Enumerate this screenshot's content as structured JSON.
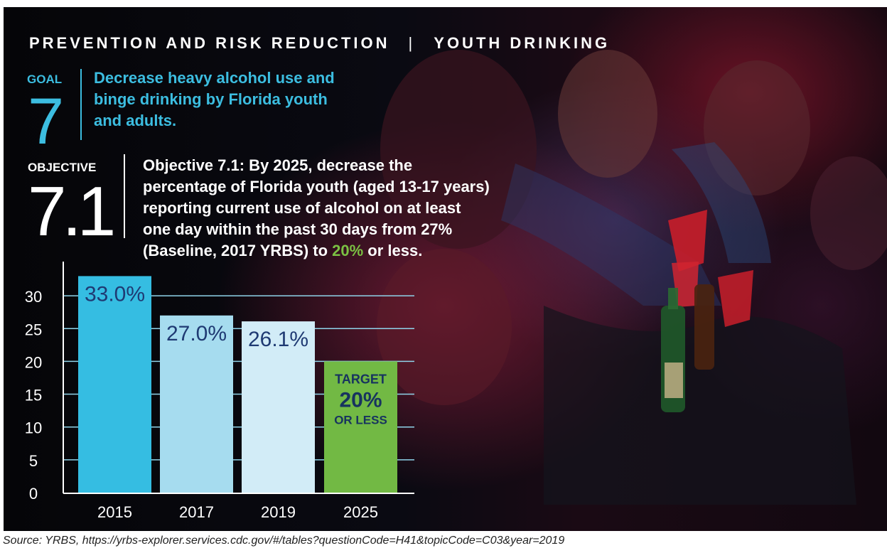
{
  "header": {
    "section": "PREVENTION AND RISK REDUCTION",
    "separator": "|",
    "topic": "YOUTH DRINKING"
  },
  "goal": {
    "label": "GOAL",
    "number": "7",
    "text_line1": "Decrease heavy alcohol use and",
    "text_line2": "binge drinking by Florida youth",
    "text_line3": "and adults."
  },
  "objective": {
    "label": "OBJECTIVE",
    "number": "7.1",
    "line1": "Objective 7.1: By 2025, decrease the",
    "line2": "percentage of Florida youth (aged 13-17 years)",
    "line3": "reporting current use of alcohol on at least",
    "line4": "one day within the past 30 days from 27%",
    "line5_before": "(Baseline, 2017 YRBS) to ",
    "line5_highlight": "20%",
    "line5_after": " or less."
  },
  "colors": {
    "accent_blue": "#3cbde0",
    "highlight_green": "#7bc143",
    "bar_2015": "#35bde2",
    "bar_2017": "#a6dcef",
    "bar_2019": "#d2ecf7",
    "bar_2025": "#72b944",
    "label_navy": "#1f3a73",
    "target_text": "#17335f"
  },
  "chart_data": {
    "type": "bar",
    "categories": [
      "2015",
      "2017",
      "2019",
      "2025"
    ],
    "values": [
      33.0,
      27.0,
      26.1,
      20
    ],
    "data_labels": [
      "33.0%",
      "27.0%",
      "26.1%",
      ""
    ],
    "target_label": {
      "line1": "TARGET",
      "line2": "20%",
      "line3": "OR LESS"
    },
    "yticks": [
      "0",
      "5",
      "10",
      "15",
      "20",
      "25",
      "30"
    ],
    "ylim": [
      0,
      35
    ],
    "grid": true,
    "title": "",
    "xlabel": "",
    "ylabel": ""
  },
  "source": "Source: YRBS, https://yrbs-explorer.services.cdc.gov/#/tables?questionCode=H41&topicCode=C03&year=2019"
}
